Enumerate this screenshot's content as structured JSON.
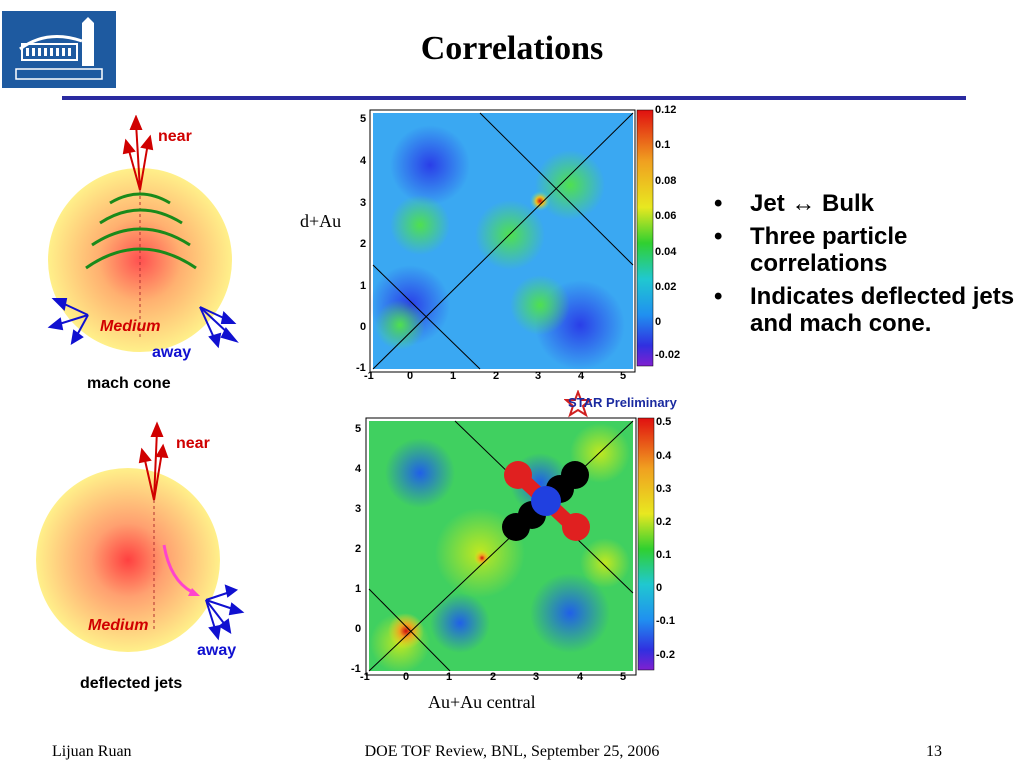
{
  "header": {
    "title": "Correlations"
  },
  "logo": {
    "alt_text": "BERKELEY LAB",
    "brand_color": "#1e5aa0"
  },
  "diagrams": {
    "mach_cone": {
      "near": "near",
      "away": "away",
      "medium": "Medium",
      "caption": "mach cone"
    },
    "deflected_jets": {
      "near": "near",
      "away": "away",
      "medium": "Medium",
      "caption": "deflected jets"
    }
  },
  "plots": {
    "top": {
      "label": "d+Au",
      "scale_ticks": [
        "0.12",
        "0.1",
        "0.08",
        "0.06",
        "0.04",
        "0.02",
        "0",
        "-0.02"
      ]
    },
    "bottom": {
      "label": "Au+Au central",
      "scale_ticks": [
        "0.5",
        "0.4",
        "0.3",
        "0.2",
        "0.1",
        "0",
        "-0.1",
        "-0.2"
      ]
    },
    "axis_ticks_x": [
      "-1",
      "0",
      "1",
      "2",
      "3",
      "4",
      "5"
    ],
    "axis_ticks_y": [
      "5",
      "4",
      "3",
      "2",
      "1",
      "0",
      "-1"
    ],
    "watermark": "STAR Preliminary"
  },
  "bullets": [
    {
      "text": "Jet ↔ Bulk"
    },
    {
      "text": "Three particle correlations"
    },
    {
      "text": "Indicates deflected jets and mach cone."
    }
  ],
  "footer": {
    "author": "Lijuan Ruan",
    "event": "DOE TOF Review, BNL, September 25, 2006",
    "page": "13"
  },
  "colors": {
    "accent_rule": "#2a2aa0",
    "near_arrow": "#d00000",
    "away_arrow": "#1010d0",
    "wave": "#1a8a1a"
  }
}
